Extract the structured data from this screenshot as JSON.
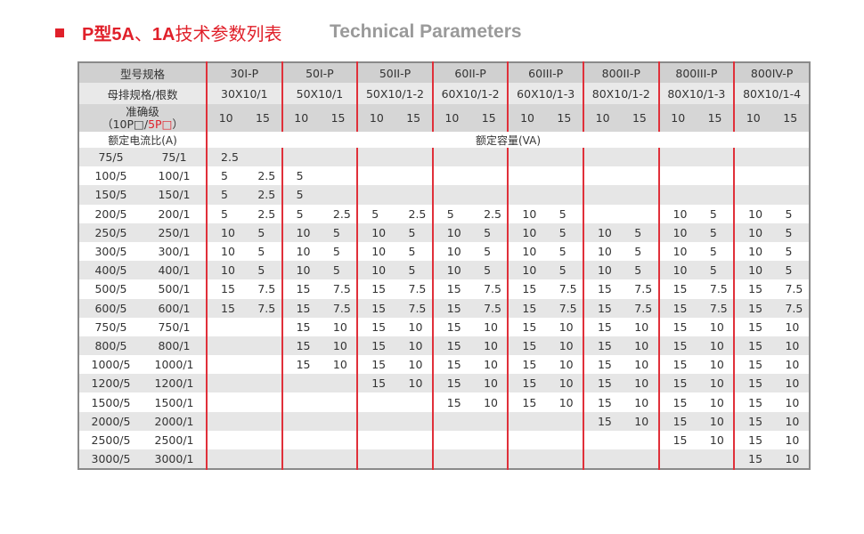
{
  "title": {
    "cn_prefix": "P型",
    "cn_5a": "5A",
    "cn_sep": "、",
    "cn_1a": "1A",
    "cn_suffix": "技术参数列表",
    "en": "Technical Parameters"
  },
  "colors": {
    "accent": "#e0202a",
    "header_gray": "#d0d0d0",
    "stripe": "#e6e6e6"
  },
  "table": {
    "model_label": "型号规格",
    "busbar_label": "母排规格/根数",
    "accuracy_label_1": "准确级",
    "accuracy_label_2a": "（10P□/",
    "accuracy_label_2b": "5P□",
    "accuracy_label_2c": "）",
    "ratio_label": "额定电流比(A)",
    "capacity_label": "额定容量(VA)",
    "models": [
      "30I-P",
      "50I-P",
      "50II-P",
      "60II-P",
      "60III-P",
      "800II-P",
      "800III-P",
      "800IV-P"
    ],
    "busbars": [
      "30X10/1",
      "50X10/1",
      "50X10/1-2",
      "60X10/1-2",
      "60X10/1-3",
      "80X10/1-2",
      "80X10/1-3",
      "80X10/1-4"
    ],
    "accuracy": [
      "10",
      "15"
    ],
    "rows": [
      {
        "r5": "75/5",
        "r1": "75/1",
        "v": [
          "2.5",
          "",
          "",
          "",
          "",
          "",
          "",
          "",
          "",
          "",
          "",
          "",
          "",
          "",
          "",
          ""
        ]
      },
      {
        "r5": "100/5",
        "r1": "100/1",
        "v": [
          "5",
          "2.5",
          "5",
          "",
          "",
          "",
          "",
          "",
          "",
          "",
          "",
          "",
          "",
          "",
          "",
          ""
        ]
      },
      {
        "r5": "150/5",
        "r1": "150/1",
        "v": [
          "5",
          "2.5",
          "5",
          "",
          "",
          "",
          "",
          "",
          "",
          "",
          "",
          "",
          "",
          "",
          "",
          ""
        ]
      },
      {
        "r5": "200/5",
        "r1": "200/1",
        "v": [
          "5",
          "2.5",
          "5",
          "2.5",
          "5",
          "2.5",
          "5",
          "2.5",
          "10",
          "5",
          "",
          "",
          "10",
          "5",
          "10",
          "5"
        ]
      },
      {
        "r5": "250/5",
        "r1": "250/1",
        "v": [
          "10",
          "5",
          "10",
          "5",
          "10",
          "5",
          "10",
          "5",
          "10",
          "5",
          "10",
          "5",
          "10",
          "5",
          "10",
          "5"
        ]
      },
      {
        "r5": "300/5",
        "r1": "300/1",
        "v": [
          "10",
          "5",
          "10",
          "5",
          "10",
          "5",
          "10",
          "5",
          "10",
          "5",
          "10",
          "5",
          "10",
          "5",
          "10",
          "5"
        ]
      },
      {
        "r5": "400/5",
        "r1": "400/1",
        "v": [
          "10",
          "5",
          "10",
          "5",
          "10",
          "5",
          "10",
          "5",
          "10",
          "5",
          "10",
          "5",
          "10",
          "5",
          "10",
          "5"
        ]
      },
      {
        "r5": "500/5",
        "r1": "500/1",
        "v": [
          "15",
          "7.5",
          "15",
          "7.5",
          "15",
          "7.5",
          "15",
          "7.5",
          "15",
          "7.5",
          "15",
          "7.5",
          "15",
          "7.5",
          "15",
          "7.5"
        ]
      },
      {
        "r5": "600/5",
        "r1": "600/1",
        "v": [
          "15",
          "7.5",
          "15",
          "7.5",
          "15",
          "7.5",
          "15",
          "7.5",
          "15",
          "7.5",
          "15",
          "7.5",
          "15",
          "7.5",
          "15",
          "7.5"
        ]
      },
      {
        "r5": "750/5",
        "r1": "750/1",
        "v": [
          "",
          "",
          "15",
          "10",
          "15",
          "10",
          "15",
          "10",
          "15",
          "10",
          "15",
          "10",
          "15",
          "10",
          "15",
          "10"
        ]
      },
      {
        "r5": "800/5",
        "r1": "800/1",
        "v": [
          "",
          "",
          "15",
          "10",
          "15",
          "10",
          "15",
          "10",
          "15",
          "10",
          "15",
          "10",
          "15",
          "10",
          "15",
          "10"
        ]
      },
      {
        "r5": "1000/5",
        "r1": "1000/1",
        "v": [
          "",
          "",
          "15",
          "10",
          "15",
          "10",
          "15",
          "10",
          "15",
          "10",
          "15",
          "10",
          "15",
          "10",
          "15",
          "10"
        ]
      },
      {
        "r5": "1200/5",
        "r1": "1200/1",
        "v": [
          "",
          "",
          "",
          "",
          "15",
          "10",
          "15",
          "10",
          "15",
          "10",
          "15",
          "10",
          "15",
          "10",
          "15",
          "10"
        ]
      },
      {
        "r5": "1500/5",
        "r1": "1500/1",
        "v": [
          "",
          "",
          "",
          "",
          "",
          "",
          "15",
          "10",
          "15",
          "10",
          "15",
          "10",
          "15",
          "10",
          "15",
          "10"
        ]
      },
      {
        "r5": "2000/5",
        "r1": "2000/1",
        "v": [
          "",
          "",
          "",
          "",
          "",
          "",
          "",
          "",
          "",
          "",
          "15",
          "10",
          "15",
          "10",
          "15",
          "10"
        ]
      },
      {
        "r5": "2500/5",
        "r1": "2500/1",
        "v": [
          "",
          "",
          "",
          "",
          "",
          "",
          "",
          "",
          "",
          "",
          "",
          "",
          "15",
          "10",
          "15",
          "10"
        ]
      },
      {
        "r5": "3000/5",
        "r1": "3000/1",
        "v": [
          "",
          "",
          "",
          "",
          "",
          "",
          "",
          "",
          "",
          "",
          "",
          "",
          "",
          "",
          "15",
          "10"
        ]
      }
    ]
  }
}
